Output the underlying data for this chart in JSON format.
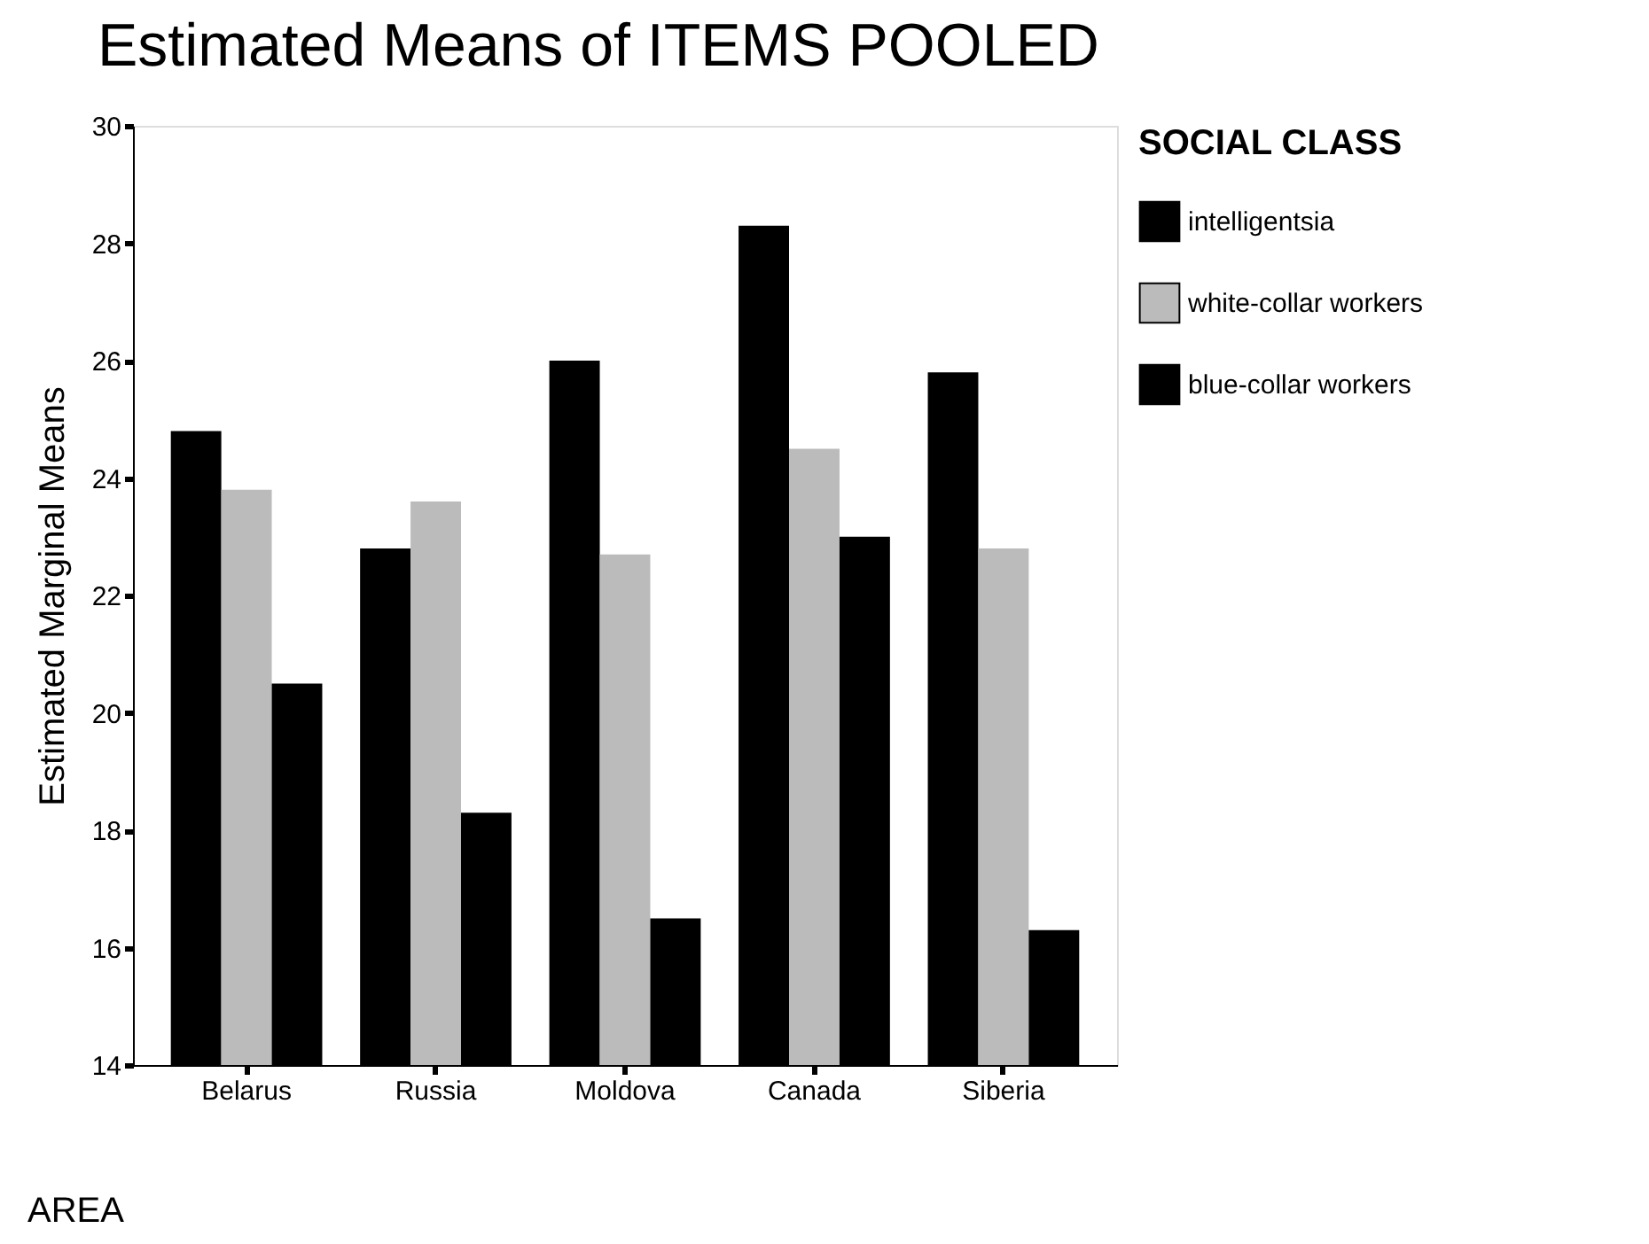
{
  "chart_data": {
    "type": "bar",
    "title": "Estimated Means of ITEMS POOLED",
    "xlabel": "AREA",
    "ylabel": "Estimated Marginal Means",
    "legend_title": "SOCIAL CLASS",
    "categories": [
      "Belarus",
      "Russia",
      "Moldova",
      "Canada",
      "Siberia"
    ],
    "series": [
      {
        "name": "intelligentsia",
        "color": "#000000",
        "values": [
          24.8,
          22.8,
          26.0,
          28.3,
          25.8
        ]
      },
      {
        "name": "white-collar workers",
        "color": "#bbbbbb",
        "values": [
          23.8,
          23.6,
          22.7,
          24.5,
          22.8
        ]
      },
      {
        "name": "blue-collar workers",
        "color": "#000000",
        "values": [
          20.5,
          18.3,
          16.5,
          23.0,
          16.3
        ]
      }
    ],
    "ylim": [
      14,
      30
    ],
    "yticks": [
      14,
      16,
      18,
      20,
      22,
      24,
      26,
      28,
      30
    ],
    "grid": false,
    "legend": "right"
  }
}
